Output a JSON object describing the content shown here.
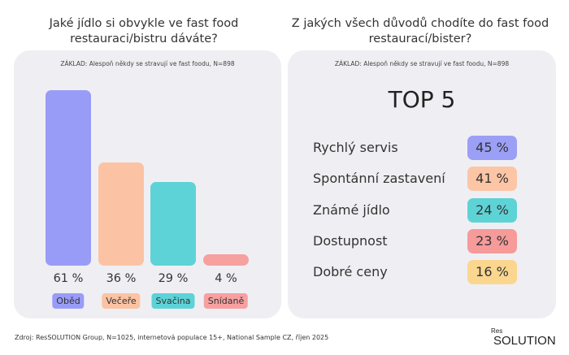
{
  "left": {
    "question": "Jaké jídlo si obvykle ve fast food restauraci/bistru dáváte?",
    "base": "ZÁKLAD: Alespoň někdy se stravují ve fast foodu, N=898"
  },
  "right": {
    "question": "Z jakých všech důvodů chodíte do fast food restaurací/bister?",
    "base": "ZÁKLAD: Alespoň někdy se stravují ve fast foodu, N=898",
    "heading": "TOP 5"
  },
  "chart_data": [
    {
      "type": "bar",
      "categories": [
        "Oběd",
        "Večeře",
        "Svačina",
        "Snídaně"
      ],
      "values": [
        61,
        36,
        29,
        4
      ],
      "value_labels": [
        "61 %",
        "36 %",
        "29 %",
        "4 %"
      ],
      "colors": [
        "#999cf7",
        "#fbc3a3",
        "#5dd3d7",
        "#f7a0a0"
      ],
      "ylim": [
        0,
        61
      ]
    },
    {
      "type": "table",
      "categories": [
        "Rychlý servis",
        "Spontánní zastavení",
        "Známé jídlo",
        "Dostupnost",
        "Dobré ceny"
      ],
      "values": [
        45,
        41,
        24,
        23,
        16
      ],
      "value_labels": [
        "45 %",
        "41 %",
        "24 %",
        "23 %",
        "16 %"
      ],
      "colors": [
        "#9b9ff5",
        "#fcc5a6",
        "#5ed3d6",
        "#f69a9a",
        "#fad68f"
      ]
    }
  ],
  "footer": {
    "source": "Zdroj: ResSOLUTION Group, N=1025, internetová populace 15+, National Sample CZ, říjen 2025",
    "logo_top": "Res",
    "logo_main": "SOLUTION"
  }
}
